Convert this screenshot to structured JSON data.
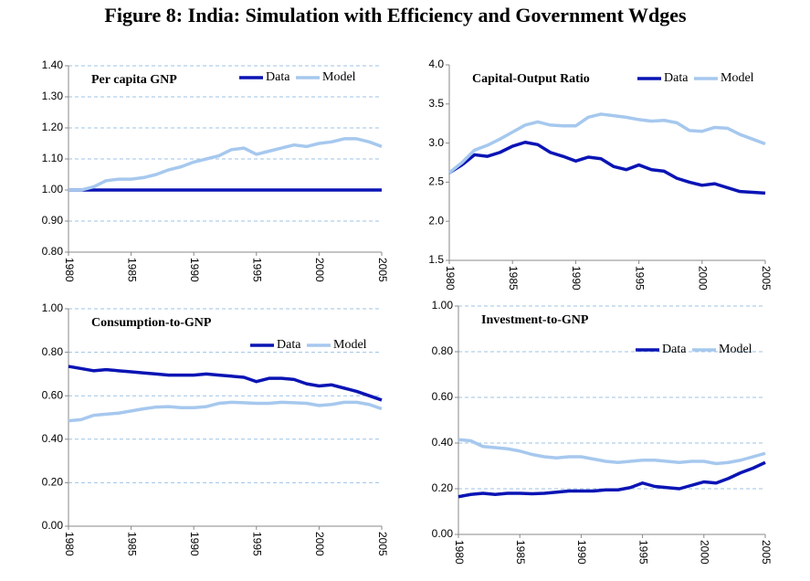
{
  "title": "Figure 8:  India: Simulation with Efficiency and Government Wdges",
  "chart_data": [
    {
      "type": "line",
      "title": "Per capita GNP",
      "x": [
        1980,
        1981,
        1982,
        1983,
        1984,
        1985,
        1986,
        1987,
        1988,
        1989,
        1990,
        1991,
        1992,
        1993,
        1994,
        1995,
        1996,
        1997,
        1998,
        1999,
        2000,
        2001,
        2002,
        2003,
        2004,
        2005
      ],
      "xlim": [
        1980,
        2005
      ],
      "xticks": [
        1980,
        1985,
        1990,
        1995,
        2000,
        2005
      ],
      "ylim": [
        0.8,
        1.4
      ],
      "yticks": [
        {
          "value": 0.8,
          "label": "0.80"
        },
        {
          "value": 0.9,
          "label": "0.90"
        },
        {
          "value": 1.0,
          "label": "1.00"
        },
        {
          "value": 1.1,
          "label": "1.10"
        },
        {
          "value": 1.2,
          "label": "1.20"
        },
        {
          "value": 1.3,
          "label": "1.30"
        },
        {
          "value": 1.4,
          "label": "1.40"
        }
      ],
      "grid": true,
      "grid_color": "#9cc3e6",
      "series": [
        {
          "name": "Data",
          "color": "#0a14b4",
          "values": [
            1,
            1,
            1,
            1,
            1,
            1,
            1,
            1,
            1,
            1,
            1,
            1,
            1,
            1,
            1,
            1,
            1,
            1,
            1,
            1,
            1,
            1,
            1,
            1,
            1,
            1
          ]
        },
        {
          "name": "Model",
          "color": "#a6c8ee",
          "values": [
            1.0,
            1.0,
            1.01,
            1.03,
            1.035,
            1.035,
            1.04,
            1.05,
            1.065,
            1.075,
            1.09,
            1.1,
            1.11,
            1.13,
            1.135,
            1.115,
            1.125,
            1.135,
            1.145,
            1.14,
            1.15,
            1.155,
            1.165,
            1.165,
            1.155,
            1.14
          ]
        }
      ]
    },
    {
      "type": "line",
      "title": "Capital-Output Ratio",
      "x": [
        1980,
        1981,
        1982,
        1983,
        1984,
        1985,
        1986,
        1987,
        1988,
        1989,
        1990,
        1991,
        1992,
        1993,
        1994,
        1995,
        1996,
        1997,
        1998,
        1999,
        2000,
        2001,
        2002,
        2003,
        2004,
        2005
      ],
      "xlim": [
        1980,
        2005
      ],
      "xticks": [
        1980,
        1985,
        1990,
        1995,
        2000,
        2005
      ],
      "ylim": [
        1.5,
        4.0
      ],
      "yticks": [
        1.5,
        {
          "value": 2.0,
          "label": "2.0"
        },
        2.5,
        {
          "value": 3.0,
          "label": "3.0"
        },
        3.5,
        {
          "value": 4.0,
          "label": "4.0"
        }
      ],
      "grid": false,
      "series": [
        {
          "name": "Data",
          "color": "#0a14b4",
          "values": [
            2.62,
            2.72,
            2.85,
            2.83,
            2.88,
            2.96,
            3.01,
            2.98,
            2.88,
            2.83,
            2.77,
            2.82,
            2.8,
            2.7,
            2.66,
            2.72,
            2.66,
            2.64,
            2.55,
            2.5,
            2.46,
            2.48,
            2.43,
            2.38,
            2.37,
            2.36
          ]
        },
        {
          "name": "Model",
          "color": "#a6c8ee",
          "values": [
            2.62,
            2.75,
            2.91,
            2.97,
            3.05,
            3.14,
            3.23,
            3.27,
            3.23,
            3.22,
            3.22,
            3.33,
            3.37,
            3.35,
            3.33,
            3.3,
            3.28,
            3.29,
            3.26,
            3.16,
            3.15,
            3.2,
            3.19,
            3.11,
            3.05,
            2.99
          ]
        }
      ]
    },
    {
      "type": "line",
      "title": "Consumption-to-GNP",
      "x": [
        1980,
        1981,
        1982,
        1983,
        1984,
        1985,
        1986,
        1987,
        1988,
        1989,
        1990,
        1991,
        1992,
        1993,
        1994,
        1995,
        1996,
        1997,
        1998,
        1999,
        2000,
        2001,
        2002,
        2003,
        2004,
        2005
      ],
      "xlim": [
        1980,
        2005
      ],
      "xticks": [
        1980,
        1985,
        1990,
        1995,
        2000,
        2005
      ],
      "ylim": [
        0,
        1.0
      ],
      "yticks": [
        {
          "value": 0,
          "label": "0.00"
        },
        {
          "value": 0.2,
          "label": "0.20"
        },
        {
          "value": 0.4,
          "label": "0.40"
        },
        {
          "value": 0.6,
          "label": "0.60"
        },
        {
          "value": 0.8,
          "label": "0.80"
        },
        {
          "value": 1.0,
          "label": "1.00"
        }
      ],
      "grid": true,
      "grid_color": "#9cc3e6",
      "series": [
        {
          "name": "Data",
          "color": "#0a14b4",
          "values": [
            0.735,
            0.725,
            0.715,
            0.72,
            0.715,
            0.71,
            0.705,
            0.7,
            0.695,
            0.695,
            0.695,
            0.7,
            0.695,
            0.69,
            0.685,
            0.665,
            0.68,
            0.68,
            0.675,
            0.655,
            0.645,
            0.65,
            0.635,
            0.62,
            0.6,
            0.58
          ]
        },
        {
          "name": "Model",
          "color": "#a6c8ee",
          "values": [
            0.485,
            0.49,
            0.51,
            0.515,
            0.52,
            0.53,
            0.54,
            0.548,
            0.55,
            0.545,
            0.545,
            0.55,
            0.565,
            0.57,
            0.568,
            0.565,
            0.565,
            0.57,
            0.568,
            0.565,
            0.555,
            0.56,
            0.57,
            0.57,
            0.56,
            0.54
          ]
        }
      ]
    },
    {
      "type": "line",
      "title": "Investment-to-GNP",
      "x": [
        1980,
        1981,
        1982,
        1983,
        1984,
        1985,
        1986,
        1987,
        1988,
        1989,
        1990,
        1991,
        1992,
        1993,
        1994,
        1995,
        1996,
        1997,
        1998,
        1999,
        2000,
        2001,
        2002,
        2003,
        2004,
        2005
      ],
      "xlim": [
        1980,
        2005
      ],
      "xticks": [
        1980,
        1985,
        1990,
        1995,
        2000,
        2005
      ],
      "ylim": [
        0,
        1.0
      ],
      "yticks": [
        {
          "value": 0,
          "label": "0.00"
        },
        {
          "value": 0.2,
          "label": "0.20"
        },
        {
          "value": 0.4,
          "label": "0.40"
        },
        {
          "value": 0.6,
          "label": "0.60"
        },
        {
          "value": 0.8,
          "label": "0.80"
        },
        {
          "value": 1.0,
          "label": "1.00"
        }
      ],
      "grid": true,
      "grid_color": "#9cc3e6",
      "series": [
        {
          "name": "Data",
          "color": "#0a14b4",
          "values": [
            0.165,
            0.175,
            0.18,
            0.175,
            0.18,
            0.18,
            0.178,
            0.18,
            0.185,
            0.19,
            0.19,
            0.19,
            0.195,
            0.195,
            0.205,
            0.225,
            0.21,
            0.205,
            0.2,
            0.215,
            0.23,
            0.225,
            0.245,
            0.27,
            0.29,
            0.315
          ]
        },
        {
          "name": "Model",
          "color": "#a6c8ee",
          "values": [
            0.415,
            0.41,
            0.385,
            0.38,
            0.375,
            0.365,
            0.35,
            0.34,
            0.335,
            0.34,
            0.34,
            0.33,
            0.32,
            0.315,
            0.32,
            0.325,
            0.325,
            0.32,
            0.315,
            0.32,
            0.32,
            0.31,
            0.315,
            0.325,
            0.34,
            0.355
          ]
        }
      ]
    }
  ]
}
